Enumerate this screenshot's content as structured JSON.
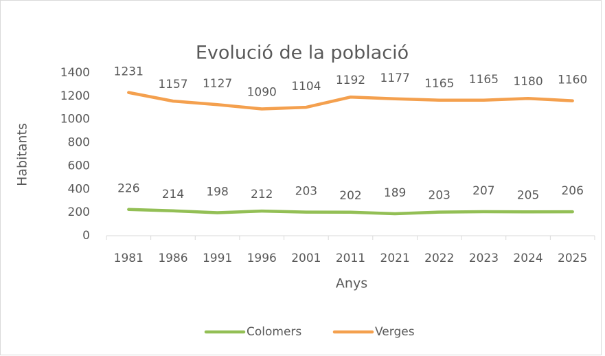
{
  "chart_data": {
    "type": "line",
    "title": "Evolució de la població",
    "x_label": "Anys",
    "y_label": "Habitants",
    "categories": [
      "1981",
      "1986",
      "1991",
      "1996",
      "2001",
      "2011",
      "2021",
      "2022",
      "2023",
      "2024",
      "2025"
    ],
    "series": [
      {
        "name": "Colomers",
        "color": "#93bf55",
        "values": [
          226,
          214,
          198,
          212,
          203,
          202,
          189,
          203,
          207,
          205,
          206
        ]
      },
      {
        "name": "Verges",
        "color": "#f4a04e",
        "values": [
          1231,
          1157,
          1127,
          1090,
          1104,
          1192,
          1177,
          1165,
          1165,
          1180,
          1160
        ]
      }
    ],
    "ylim": [
      0,
      1400
    ],
    "yticks": [
      0,
      200,
      400,
      600,
      800,
      1000,
      1200,
      1400
    ],
    "grid": false,
    "legend": "bottom"
  }
}
